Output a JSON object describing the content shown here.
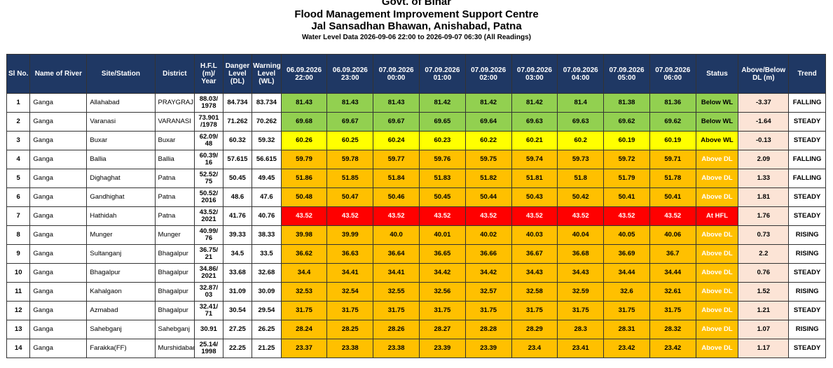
{
  "header": {
    "line1": "Govt. of Bihar",
    "line2": "Flood Management Improvement Support Centre",
    "line3": "Jal Sansadhan Bhawan, Anishabad, Patna",
    "line4": "Water Level Data 2026-09-06 22:00 to 2026-09-07 06:30 (All Readings)"
  },
  "columns": {
    "sl": "Sl No.",
    "river": "Name of River",
    "site": "Site/Station",
    "district": "District",
    "hfl": "H.F.L (m)/ Year",
    "dl": "Danger Level (DL)",
    "wl": "Warning Level (WL)",
    "times": [
      "06.09.2026 22:00",
      "06.09.2026 23:00",
      "07.09.2026 00:00",
      "07.09.2026 01:00",
      "07.09.2026 02:00",
      "07.09.2026 03:00",
      "07.09.2026 04:00",
      "07.09.2026 05:00",
      "07.09.2026 06:00"
    ],
    "status": "Status",
    "diff": "Above/Below DL (m)",
    "trend": "Trend"
  },
  "colors": {
    "header_bg": "#1f3864",
    "below_wl": "#92d050",
    "above_wl": "#ffff00",
    "above_dl": "#ffc000",
    "at_hfl": "#ff0000",
    "diff_bg": "#fce4d6"
  },
  "rows": [
    {
      "sl": "1",
      "river": "Ganga",
      "site": "Allahabad",
      "district": "PRAYGRAJ",
      "hfl": "88.03/ 1978",
      "dl": "84.734",
      "wl": "83.734",
      "readings": [
        "81.43",
        "81.43",
        "81.43",
        "81.42",
        "81.42",
        "81.42",
        "81.4",
        "81.38",
        "81.36"
      ],
      "status": "Below WL",
      "level": "green",
      "diff": "-3.37",
      "trend": "FALLING"
    },
    {
      "sl": "2",
      "river": "Ganga",
      "site": "Varanasi",
      "district": "VARANASI",
      "hfl": "73.901 /1978",
      "dl": "71.262",
      "wl": "70.262",
      "readings": [
        "69.68",
        "69.67",
        "69.67",
        "69.65",
        "69.64",
        "69.63",
        "69.63",
        "69.62",
        "69.62"
      ],
      "status": "Below WL",
      "level": "green",
      "diff": "-1.64",
      "trend": "STEADY"
    },
    {
      "sl": "3",
      "river": "Ganga",
      "site": "Buxar",
      "district": "Buxar",
      "hfl": "62.09/ 48",
      "dl": "60.32",
      "wl": "59.32",
      "readings": [
        "60.26",
        "60.25",
        "60.24",
        "60.23",
        "60.22",
        "60.21",
        "60.2",
        "60.19",
        "60.19"
      ],
      "status": "Above WL",
      "level": "yellow",
      "diff": "-0.13",
      "trend": "STEADY"
    },
    {
      "sl": "4",
      "river": "Ganga",
      "site": "Ballia",
      "district": "Ballia",
      "hfl": "60.39/ 16",
      "dl": "57.615",
      "wl": "56.615",
      "readings": [
        "59.79",
        "59.78",
        "59.77",
        "59.76",
        "59.75",
        "59.74",
        "59.73",
        "59.72",
        "59.71"
      ],
      "status": "Above DL",
      "level": "orange",
      "diff": "2.09",
      "trend": "FALLING"
    },
    {
      "sl": "5",
      "river": "Ganga",
      "site": "Dighaghat",
      "district": "Patna",
      "hfl": "52.52/ 75",
      "dl": "50.45",
      "wl": "49.45",
      "readings": [
        "51.86",
        "51.85",
        "51.84",
        "51.83",
        "51.82",
        "51.81",
        "51.8",
        "51.79",
        "51.78"
      ],
      "status": "Above DL",
      "level": "orange",
      "diff": "1.33",
      "trend": "FALLING"
    },
    {
      "sl": "6",
      "river": "Ganga",
      "site": "Gandhighat",
      "district": "Patna",
      "hfl": "50.52/ 2016",
      "dl": "48.6",
      "wl": "47.6",
      "readings": [
        "50.48",
        "50.47",
        "50.46",
        "50.45",
        "50.44",
        "50.43",
        "50.42",
        "50.41",
        "50.41"
      ],
      "status": "Above DL",
      "level": "orange",
      "diff": "1.81",
      "trend": "STEADY"
    },
    {
      "sl": "7",
      "river": "Ganga",
      "site": "Hathidah",
      "district": "Patna",
      "hfl": "43.52/ 2021",
      "dl": "41.76",
      "wl": "40.76",
      "readings": [
        "43.52",
        "43.52",
        "43.52",
        "43.52",
        "43.52",
        "43.52",
        "43.52",
        "43.52",
        "43.52"
      ],
      "status": "At HFL",
      "level": "red",
      "diff": "1.76",
      "trend": "STEADY"
    },
    {
      "sl": "8",
      "river": "Ganga",
      "site": "Munger",
      "district": "Munger",
      "hfl": "40.99/ 76",
      "dl": "39.33",
      "wl": "38.33",
      "readings": [
        "39.98",
        "39.99",
        "40.0",
        "40.01",
        "40.02",
        "40.03",
        "40.04",
        "40.05",
        "40.06"
      ],
      "status": "Above DL",
      "level": "orange",
      "diff": "0.73",
      "trend": "RISING"
    },
    {
      "sl": "9",
      "river": "Ganga",
      "site": "Sultanganj",
      "district": "Bhagalpur",
      "hfl": "36.75/ 21",
      "dl": "34.5",
      "wl": "33.5",
      "readings": [
        "36.62",
        "36.63",
        "36.64",
        "36.65",
        "36.66",
        "36.67",
        "36.68",
        "36.69",
        "36.7"
      ],
      "status": "Above DL",
      "level": "orange",
      "diff": "2.2",
      "trend": "RISING"
    },
    {
      "sl": "10",
      "river": "Ganga",
      "site": "Bhagalpur",
      "district": "Bhagalpur",
      "hfl": "34.86/ 2021",
      "dl": "33.68",
      "wl": "32.68",
      "readings": [
        "34.4",
        "34.41",
        "34.41",
        "34.42",
        "34.42",
        "34.43",
        "34.43",
        "34.44",
        "34.44"
      ],
      "status": "Above DL",
      "level": "orange",
      "diff": "0.76",
      "trend": "STEADY"
    },
    {
      "sl": "11",
      "river": "Ganga",
      "site": "Kahalgaon",
      "district": "Bhagalpur",
      "hfl": "32.87/ 03",
      "dl": "31.09",
      "wl": "30.09",
      "readings": [
        "32.53",
        "32.54",
        "32.55",
        "32.56",
        "32.57",
        "32.58",
        "32.59",
        "32.6",
        "32.61"
      ],
      "status": "Above DL",
      "level": "orange",
      "diff": "1.52",
      "trend": "RISING"
    },
    {
      "sl": "12",
      "river": "Ganga",
      "site": "Azmabad",
      "district": "Bhagalpur",
      "hfl": "32.41/ 71",
      "dl": "30.54",
      "wl": "29.54",
      "readings": [
        "31.75",
        "31.75",
        "31.75",
        "31.75",
        "31.75",
        "31.75",
        "31.75",
        "31.75",
        "31.75"
      ],
      "status": "Above DL",
      "level": "orange",
      "diff": "1.21",
      "trend": "STEADY"
    },
    {
      "sl": "13",
      "river": "Ganga",
      "site": "Sahebganj",
      "district": "Sahebganj",
      "hfl": "30.91",
      "dl": "27.25",
      "wl": "26.25",
      "readings": [
        "28.24",
        "28.25",
        "28.26",
        "28.27",
        "28.28",
        "28.29",
        "28.3",
        "28.31",
        "28.32"
      ],
      "status": "Above DL",
      "level": "orange",
      "diff": "1.07",
      "trend": "RISING"
    },
    {
      "sl": "14",
      "river": "Ganga",
      "site": "Farakka(FF)",
      "district": "Murshidabad",
      "hfl": "25.14/ 1998",
      "dl": "22.25",
      "wl": "21.25",
      "readings": [
        "23.37",
        "23.38",
        "23.38",
        "23.39",
        "23.39",
        "23.4",
        "23.41",
        "23.42",
        "23.42"
      ],
      "status": "Above DL",
      "level": "orange",
      "diff": "1.17",
      "trend": "STEADY"
    }
  ]
}
